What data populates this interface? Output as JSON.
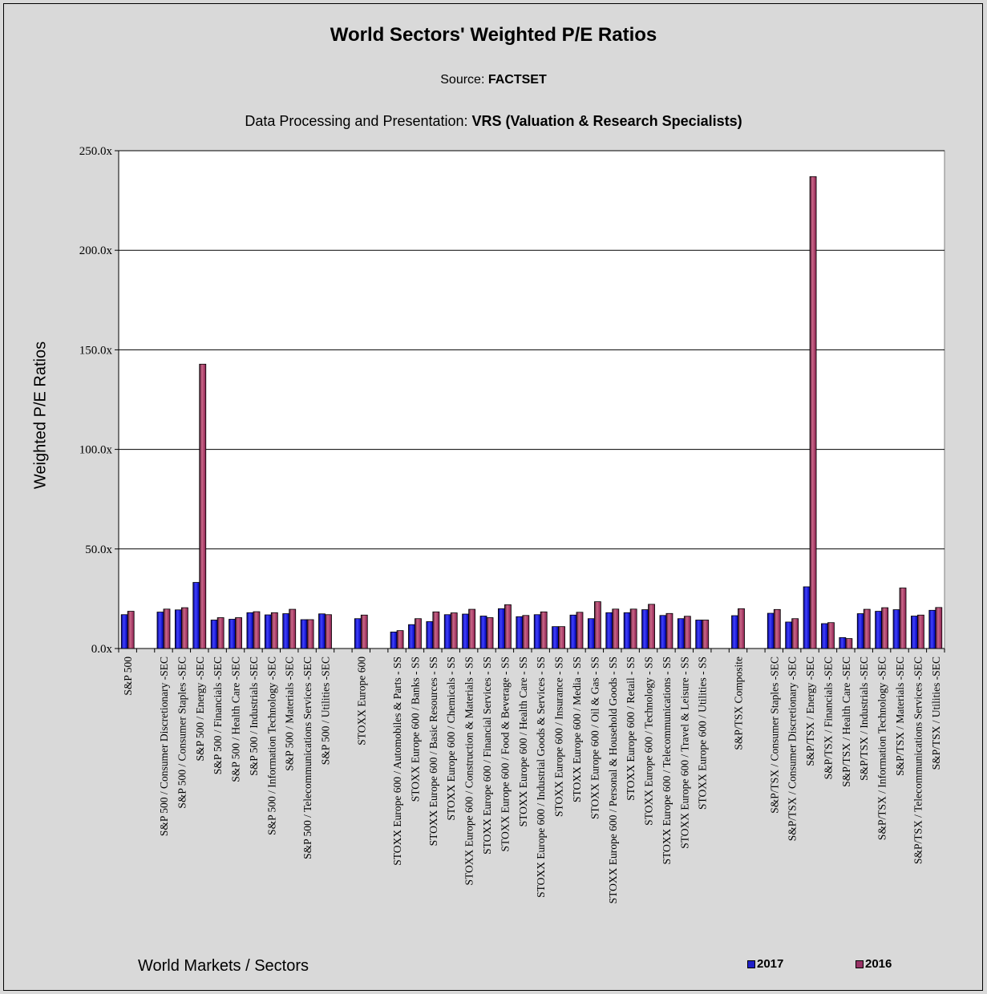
{
  "chart_data": {
    "type": "bar",
    "title": "World Sectors' Weighted P/E Ratios",
    "source_prefix": "Source: ",
    "source_name": "FACTSET",
    "processing_prefix": "Data Processing and Presentation: ",
    "processing_name": "VRS (Valuation & Research Specialists)",
    "xlabel": "World Markets / Sectors",
    "ylabel": "Weighted P/E Ratios",
    "ylim": [
      0,
      250
    ],
    "yticks": [
      0,
      50,
      100,
      150,
      200,
      250
    ],
    "ytick_labels": [
      "0.0x",
      "50.0x",
      "100.0x",
      "150.0x",
      "200.0x",
      "250.0x"
    ],
    "grid": true,
    "legend_position": "bottom-right",
    "categories": [
      "S&P 500",
      "",
      "S&P 500 / Consumer Discretionary -SEC",
      "S&P 500 / Consumer Staples -SEC",
      "S&P 500 / Energy -SEC",
      "S&P 500 / Financials -SEC",
      "S&P 500 / Health Care -SEC",
      "S&P 500 / Industrials -SEC",
      "S&P 500 / Information Technology -SEC",
      "S&P 500 / Materials -SEC",
      "S&P 500 / Telecommunications Services -SEC",
      "S&P 500 / Utilities -SEC",
      "",
      "STOXX Europe 600",
      "",
      "STOXX Europe 600 / Automobiles & Parts - SS",
      "STOXX Europe 600 / Banks - SS",
      "STOXX Europe 600 / Basic Resources - SS",
      "STOXX Europe 600 / Chemicals - SS",
      "STOXX Europe 600 / Construction & Materials - SS",
      "STOXX Europe 600 / Financial Services - SS",
      "STOXX Europe 600 / Food & Beverage - SS",
      "STOXX Europe 600 / Health Care - SS",
      "STOXX Europe 600 / Industrial Goods & Services - SS",
      "STOXX Europe 600 / Insurance - SS",
      "STOXX Europe 600 / Media - SS",
      "STOXX Europe 600 / Oil & Gas - SS",
      "STOXX Europe 600 / Personal & Household Goods - SS",
      "STOXX Europe 600 / Retail - SS",
      "STOXX Europe 600 / Technology - SS",
      "STOXX Europe 600 / Telecommunications - SS",
      "STOXX Europe 600 / Travel & Leisure - SS",
      "STOXX Europe 600 / Utilities - SS",
      "",
      "S&P/TSX Composite",
      "",
      "S&P/TSX / Consumer Staples -SEC",
      "S&P/TSX / Consumer Discretionary -SEC",
      "S&P/TSX / Energy -SEC",
      "S&P/TSX / Financials -SEC",
      "S&P/TSX / Health Care -SEC",
      "S&P/TSX / Industrials -SEC",
      "S&P/TSX / Information Technology -SEC",
      "S&P/TSX / Materials -SEC",
      "S&P/TSX / Telecommunications Services -SEC",
      "S&P/TSX / Utilities -SEC"
    ],
    "series": [
      {
        "name": "2017",
        "color": "#2020c8",
        "values": [
          17.0,
          null,
          18.3,
          19.4,
          33.2,
          14.3,
          14.7,
          18.0,
          16.9,
          17.5,
          14.5,
          17.4,
          null,
          15.0,
          null,
          8.3,
          12.0,
          13.5,
          17.0,
          17.3,
          16.3,
          20.0,
          16.0,
          17.0,
          11.0,
          16.8,
          15.0,
          18.0,
          18.0,
          19.5,
          16.6,
          15.0,
          14.3,
          null,
          16.5,
          null,
          17.7,
          13.3,
          31.0,
          12.5,
          5.5,
          17.5,
          18.7,
          19.5,
          16.3,
          19.2
        ],
        "fill": [
          "#000080",
          "#4040ff",
          "#0000b0"
        ]
      },
      {
        "name": "2016",
        "color": "#993366",
        "values": [
          18.7,
          null,
          19.8,
          20.5,
          142.8,
          15.5,
          15.5,
          18.5,
          18.0,
          19.7,
          14.5,
          17.0,
          null,
          16.8,
          null,
          9.0,
          15.0,
          18.4,
          17.9,
          19.7,
          15.5,
          22.0,
          16.6,
          18.4,
          11.0,
          18.2,
          23.5,
          19.8,
          19.8,
          22.2,
          17.6,
          16.2,
          14.3,
          null,
          20.0,
          null,
          19.6,
          15.0,
          237.0,
          13.0,
          5.0,
          19.7,
          20.5,
          30.4,
          16.8,
          20.6
        ],
        "fill": [
          "#4a1830",
          "#cc6688",
          "#8a2050"
        ]
      }
    ]
  }
}
